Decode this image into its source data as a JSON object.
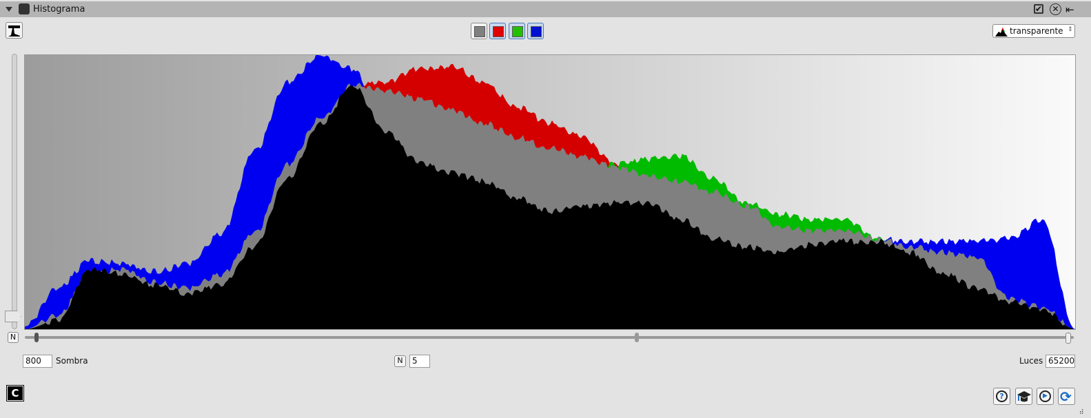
{
  "window": {
    "title": "Histograma",
    "collapse_icon": "triangle-down-icon",
    "app_icon": "histogram-icon",
    "header_icons": [
      "checkbox-icon",
      "close-circle-icon",
      "exit-panel-icon"
    ]
  },
  "toolbar": {
    "mode_icon": "histogram-mode-icon",
    "channels": [
      {
        "name": "luminance",
        "color": "#808080",
        "active": false
      },
      {
        "name": "red",
        "color": "#e00000",
        "active": true
      },
      {
        "name": "green",
        "color": "#22c000",
        "active": true
      },
      {
        "name": "blue",
        "color": "#0010d0",
        "active": true
      }
    ],
    "display_select": {
      "value": "transparente",
      "icon": "histogram-color-icon"
    }
  },
  "histogram": {
    "colors": {
      "red": "#d40000",
      "green": "#00bb00",
      "blue": "#0000f0",
      "overlap": "#808080",
      "all": "#000000",
      "bg_left": "#9c9c9c",
      "bg_right": "#fafafa"
    },
    "channels_relative": {
      "luminance": [
        0,
        0.03,
        0.22,
        0.2,
        0.16,
        0.13,
        0.16,
        0.3,
        0.55,
        0.75,
        0.89,
        0.72,
        0.61,
        0.57,
        0.54,
        0.48,
        0.43,
        0.45,
        0.46,
        0.46,
        0.4,
        0.33,
        0.3,
        0.28,
        0.31,
        0.32,
        0.32,
        0.28,
        0.2,
        0.15,
        0.1,
        0.075,
        0
      ],
      "gray": [
        0,
        0.05,
        0.2,
        0.22,
        0.17,
        0.15,
        0.2,
        0.35,
        0.6,
        0.77,
        0.89,
        0.87,
        0.84,
        0.8,
        0.75,
        0.7,
        0.66,
        0.63,
        0.59,
        0.56,
        0.54,
        0.5,
        0.45,
        0.37,
        0.36,
        0.36,
        0.33,
        0.3,
        0.28,
        0.26,
        0.11,
        0.08,
        0
      ],
      "red": [
        0,
        0.04,
        0.18,
        0.2,
        0.15,
        0.13,
        0.18,
        0.33,
        0.58,
        0.75,
        0.89,
        0.9,
        0.95,
        0.96,
        0.9,
        0.81,
        0.75,
        0.7,
        0.6,
        0.5,
        0.48,
        0.45,
        0.4,
        0.33,
        0.32,
        0.32,
        0.3,
        0.27,
        0.25,
        0.23,
        0.1,
        0.07,
        0
      ],
      "green": [
        0,
        0.04,
        0.18,
        0.2,
        0.15,
        0.13,
        0.18,
        0.33,
        0.58,
        0.75,
        0.85,
        0.8,
        0.78,
        0.75,
        0.7,
        0.65,
        0.6,
        0.58,
        0.6,
        0.62,
        0.63,
        0.55,
        0.46,
        0.42,
        0.4,
        0.4,
        0.33,
        0.27,
        0.25,
        0.23,
        0.1,
        0.07,
        0
      ],
      "blue": [
        0.01,
        0.15,
        0.25,
        0.24,
        0.21,
        0.24,
        0.35,
        0.65,
        0.9,
        1,
        0.95,
        0.7,
        0.6,
        0.55,
        0.5,
        0.45,
        0.4,
        0.42,
        0.43,
        0.43,
        0.38,
        0.32,
        0.28,
        0.27,
        0.3,
        0.31,
        0.33,
        0.32,
        0.32,
        0.32,
        0.33,
        0.4,
        0
      ]
    }
  },
  "controls": {
    "left_n": "N",
    "shadow_value": "800",
    "shadow_label": "Sombra",
    "mid_n": "N",
    "mid_value": "5",
    "highlight_label": "Luces",
    "highlight_value": "65200",
    "slider_positions": [
      800,
      32768,
      65200
    ]
  },
  "footer": {
    "color_icon": "C",
    "buttons": [
      "help-icon",
      "tutorial-icon",
      "play-icon",
      "refresh-icon"
    ]
  }
}
